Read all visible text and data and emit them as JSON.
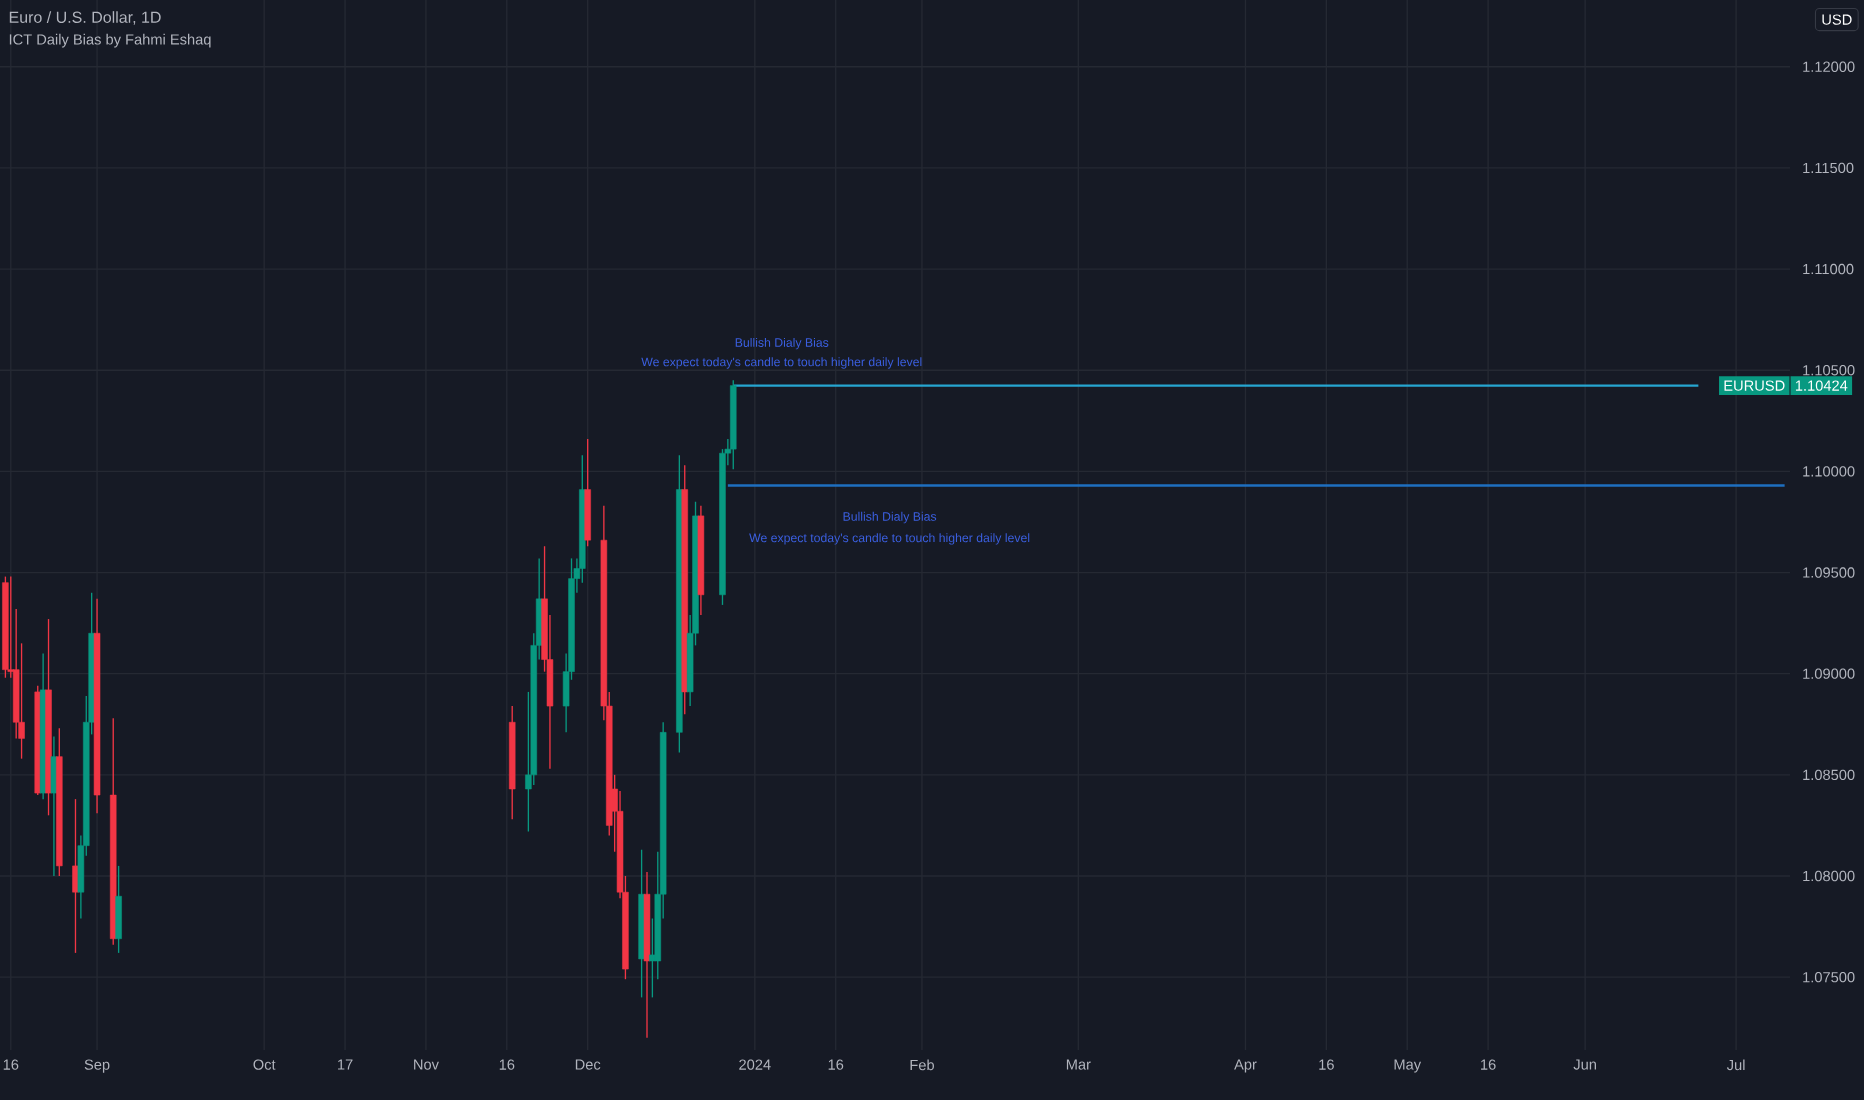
{
  "chart_data": {
    "type": "candlestick",
    "title": "Euro / U.S. Dollar, 1D",
    "subtitle": "ICT Daily Bias by Fahmi Eshaq",
    "xlim": [
      "2023-08-14",
      "2024-07-11"
    ],
    "ylim": [
      1.0714,
      1.1233
    ],
    "grid": true,
    "xticks": [
      {
        "value": "2023-08-16",
        "label": "16"
      },
      {
        "value": "2023-09-01",
        "label": "Sep"
      },
      {
        "value": "2023-10-02",
        "label": "Oct"
      },
      {
        "value": "2023-10-17",
        "label": "17"
      },
      {
        "value": "2023-11-01",
        "label": "Nov"
      },
      {
        "value": "2023-11-16",
        "label": "16"
      },
      {
        "value": "2023-12-01",
        "label": "Dec"
      },
      {
        "value": "2024-01-01",
        "label": "2024"
      },
      {
        "value": "2024-01-16",
        "label": "16"
      },
      {
        "value": "2024-02-01",
        "label": "Feb"
      },
      {
        "value": "2024-03-01",
        "label": "Mar"
      },
      {
        "value": "2024-04-01",
        "label": "Apr"
      },
      {
        "value": "2024-04-16",
        "label": "16"
      },
      {
        "value": "2024-05-01",
        "label": "May"
      },
      {
        "value": "2024-05-16",
        "label": "16"
      },
      {
        "value": "2024-06-03",
        "label": "Jun"
      },
      {
        "value": "2024-07-01",
        "label": "Jul"
      }
    ],
    "yticks": [
      {
        "value": 1.075,
        "label": "1.07500"
      },
      {
        "value": 1.08,
        "label": "1.08000"
      },
      {
        "value": 1.085,
        "label": "1.08500"
      },
      {
        "value": 1.09,
        "label": "1.09000"
      },
      {
        "value": 1.095,
        "label": "1.09500"
      },
      {
        "value": 1.1,
        "label": "1.10000"
      },
      {
        "value": 1.105,
        "label": "1.10500"
      },
      {
        "value": 1.11,
        "label": "1.11000"
      },
      {
        "value": 1.115,
        "label": "1.11500"
      },
      {
        "value": 1.12,
        "label": "1.12000"
      }
    ],
    "series": [
      {
        "type": "line",
        "x": [
          "2023-12-27",
          "2024-07-10"
        ],
        "values": [
          1.0993,
          1.0993
        ],
        "color": "#1e6fc0"
      },
      {
        "type": "line",
        "x": [
          "2023-12-28",
          "2024-06-24"
        ],
        "values": [
          1.10424,
          1.10424
        ],
        "color": "#26a6d1"
      },
      {
        "x": [
          "2023-08-15",
          "2023-08-16",
          "2023-08-17",
          "2023-08-18",
          "2023-08-21",
          "2023-08-22",
          "2023-08-23",
          "2023-08-24",
          "2023-08-25",
          "2023-08-28",
          "2023-08-29",
          "2023-08-30",
          "2023-08-31",
          "2023-09-01",
          "2023-09-04",
          "2023-09-05",
          "2023-11-17",
          "2023-11-20",
          "2023-11-21",
          "2023-11-22",
          "2023-11-23",
          "2023-11-24",
          "2023-11-27",
          "2023-11-28",
          "2023-11-29",
          "2023-11-30",
          "2023-12-01",
          "2023-12-04",
          "2023-12-05",
          "2023-12-06",
          "2023-12-07",
          "2023-12-08",
          "2023-12-11",
          "2023-12-12",
          "2023-12-13",
          "2023-12-14",
          "2023-12-15",
          "2023-12-18",
          "2023-12-19",
          "2023-12-20",
          "2023-12-21",
          "2023-12-22",
          "2023-12-26",
          "2023-12-27",
          "2023-12-28"
        ],
        "ohlc": [
          [
            1.0945,
            1.0948,
            1.0898,
            1.0902
          ],
          [
            1.0902,
            1.0948,
            1.0898,
            1.0901
          ],
          [
            1.0902,
            1.0932,
            1.0868,
            1.0876
          ],
          [
            1.0876,
            1.0915,
            1.0858,
            1.0868
          ],
          [
            1.0891,
            1.0894,
            1.084,
            1.0841
          ],
          [
            1.0841,
            1.091,
            1.0838,
            1.0892
          ],
          [
            1.0892,
            1.0927,
            1.083,
            1.0841
          ],
          [
            1.0841,
            1.0869,
            1.08,
            1.0859
          ],
          [
            1.0859,
            1.0873,
            1.08,
            1.0805
          ],
          [
            1.0805,
            1.0838,
            1.0762,
            1.0792
          ],
          [
            1.0792,
            1.082,
            1.0779,
            1.0815
          ],
          [
            1.0815,
            1.0889,
            1.081,
            1.0876
          ],
          [
            1.0876,
            1.094,
            1.087,
            1.092
          ],
          [
            1.092,
            1.0937,
            1.0831,
            1.084
          ],
          [
            1.084,
            1.0878,
            1.0766,
            1.0769
          ],
          [
            1.0769,
            1.0805,
            1.0762,
            1.079
          ],
          [
            1.0876,
            1.0884,
            1.0828,
            1.0843
          ],
          [
            1.0843,
            1.0891,
            1.0822,
            1.085
          ],
          [
            1.085,
            1.092,
            1.0845,
            1.0914
          ],
          [
            1.0914,
            1.0957,
            1.0907,
            1.0937
          ],
          [
            1.0937,
            1.0963,
            1.0901,
            1.0907
          ],
          [
            1.0907,
            1.0929,
            1.0853,
            1.0884
          ],
          [
            1.0884,
            1.091,
            1.0871,
            1.0901
          ],
          [
            1.0901,
            1.0957,
            1.0897,
            1.0947
          ],
          [
            1.0947,
            1.0957,
            1.094,
            1.0952
          ],
          [
            1.0952,
            1.1008,
            1.0945,
            1.0991
          ],
          [
            1.0991,
            1.1016,
            1.0963,
            1.0966
          ],
          [
            1.0966,
            1.0983,
            1.0877,
            1.0884
          ],
          [
            1.0884,
            1.0891,
            1.082,
            1.0825
          ],
          [
            1.0843,
            1.085,
            1.0812,
            1.0832
          ],
          [
            1.0832,
            1.0842,
            1.0789,
            1.0792
          ],
          [
            1.0792,
            1.08,
            1.0749,
            1.0754
          ],
          [
            1.0759,
            1.0813,
            1.074,
            1.0791
          ],
          [
            1.0791,
            1.0802,
            1.072,
            1.0758
          ],
          [
            1.0758,
            1.0779,
            1.074,
            1.0761
          ],
          [
            1.0758,
            1.0812,
            1.0749,
            1.0791
          ],
          [
            1.0791,
            1.0876,
            1.0779,
            1.0871
          ],
          [
            1.0871,
            1.1008,
            1.0861,
            1.0991
          ],
          [
            1.0991,
            1.1003,
            1.088,
            1.0891
          ],
          [
            1.0891,
            1.0929,
            1.0884,
            1.092
          ],
          [
            1.092,
            1.0985,
            1.0914,
            1.0978
          ],
          [
            1.0978,
            1.0983,
            1.0929,
            1.0939
          ],
          [
            1.0939,
            1.1011,
            1.0934,
            1.1009
          ],
          [
            1.1009,
            1.1016,
            1.1003,
            1.1011
          ],
          [
            1.1011,
            1.1045,
            1.1001,
            1.10424
          ]
        ],
        "colors": [
          "#f23645",
          "#f23645",
          "#f23645",
          "#f23645",
          "#f23645",
          "#089981",
          "#f23645",
          "#089981",
          "#f23645",
          "#f23645",
          "#089981",
          "#089981",
          "#089981",
          "#f23645",
          "#f23645",
          "#089981",
          "#f23645",
          "#089981",
          "#089981",
          "#089981",
          "#f23645",
          "#f23645",
          "#089981",
          "#089981",
          "#089981",
          "#089981",
          "#f23645",
          "#f23645",
          "#f23645",
          "#f23645",
          "#f23645",
          "#f23645",
          "#089981",
          "#f23645",
          "#089981",
          "#089981",
          "#089981",
          "#089981",
          "#f23645",
          "#089981",
          "#089981",
          "#f23645",
          "#089981",
          "#089981",
          "#089981"
        ]
      }
    ],
    "annotations": [
      "USD",
      "EURUSD",
      "1.10424",
      "Bullish Dialy Bias",
      "We expect today's candle to touch higher daily level",
      "Bullish Dialy Bias",
      "We expect today's candle to touch higher daily level"
    ]
  }
}
